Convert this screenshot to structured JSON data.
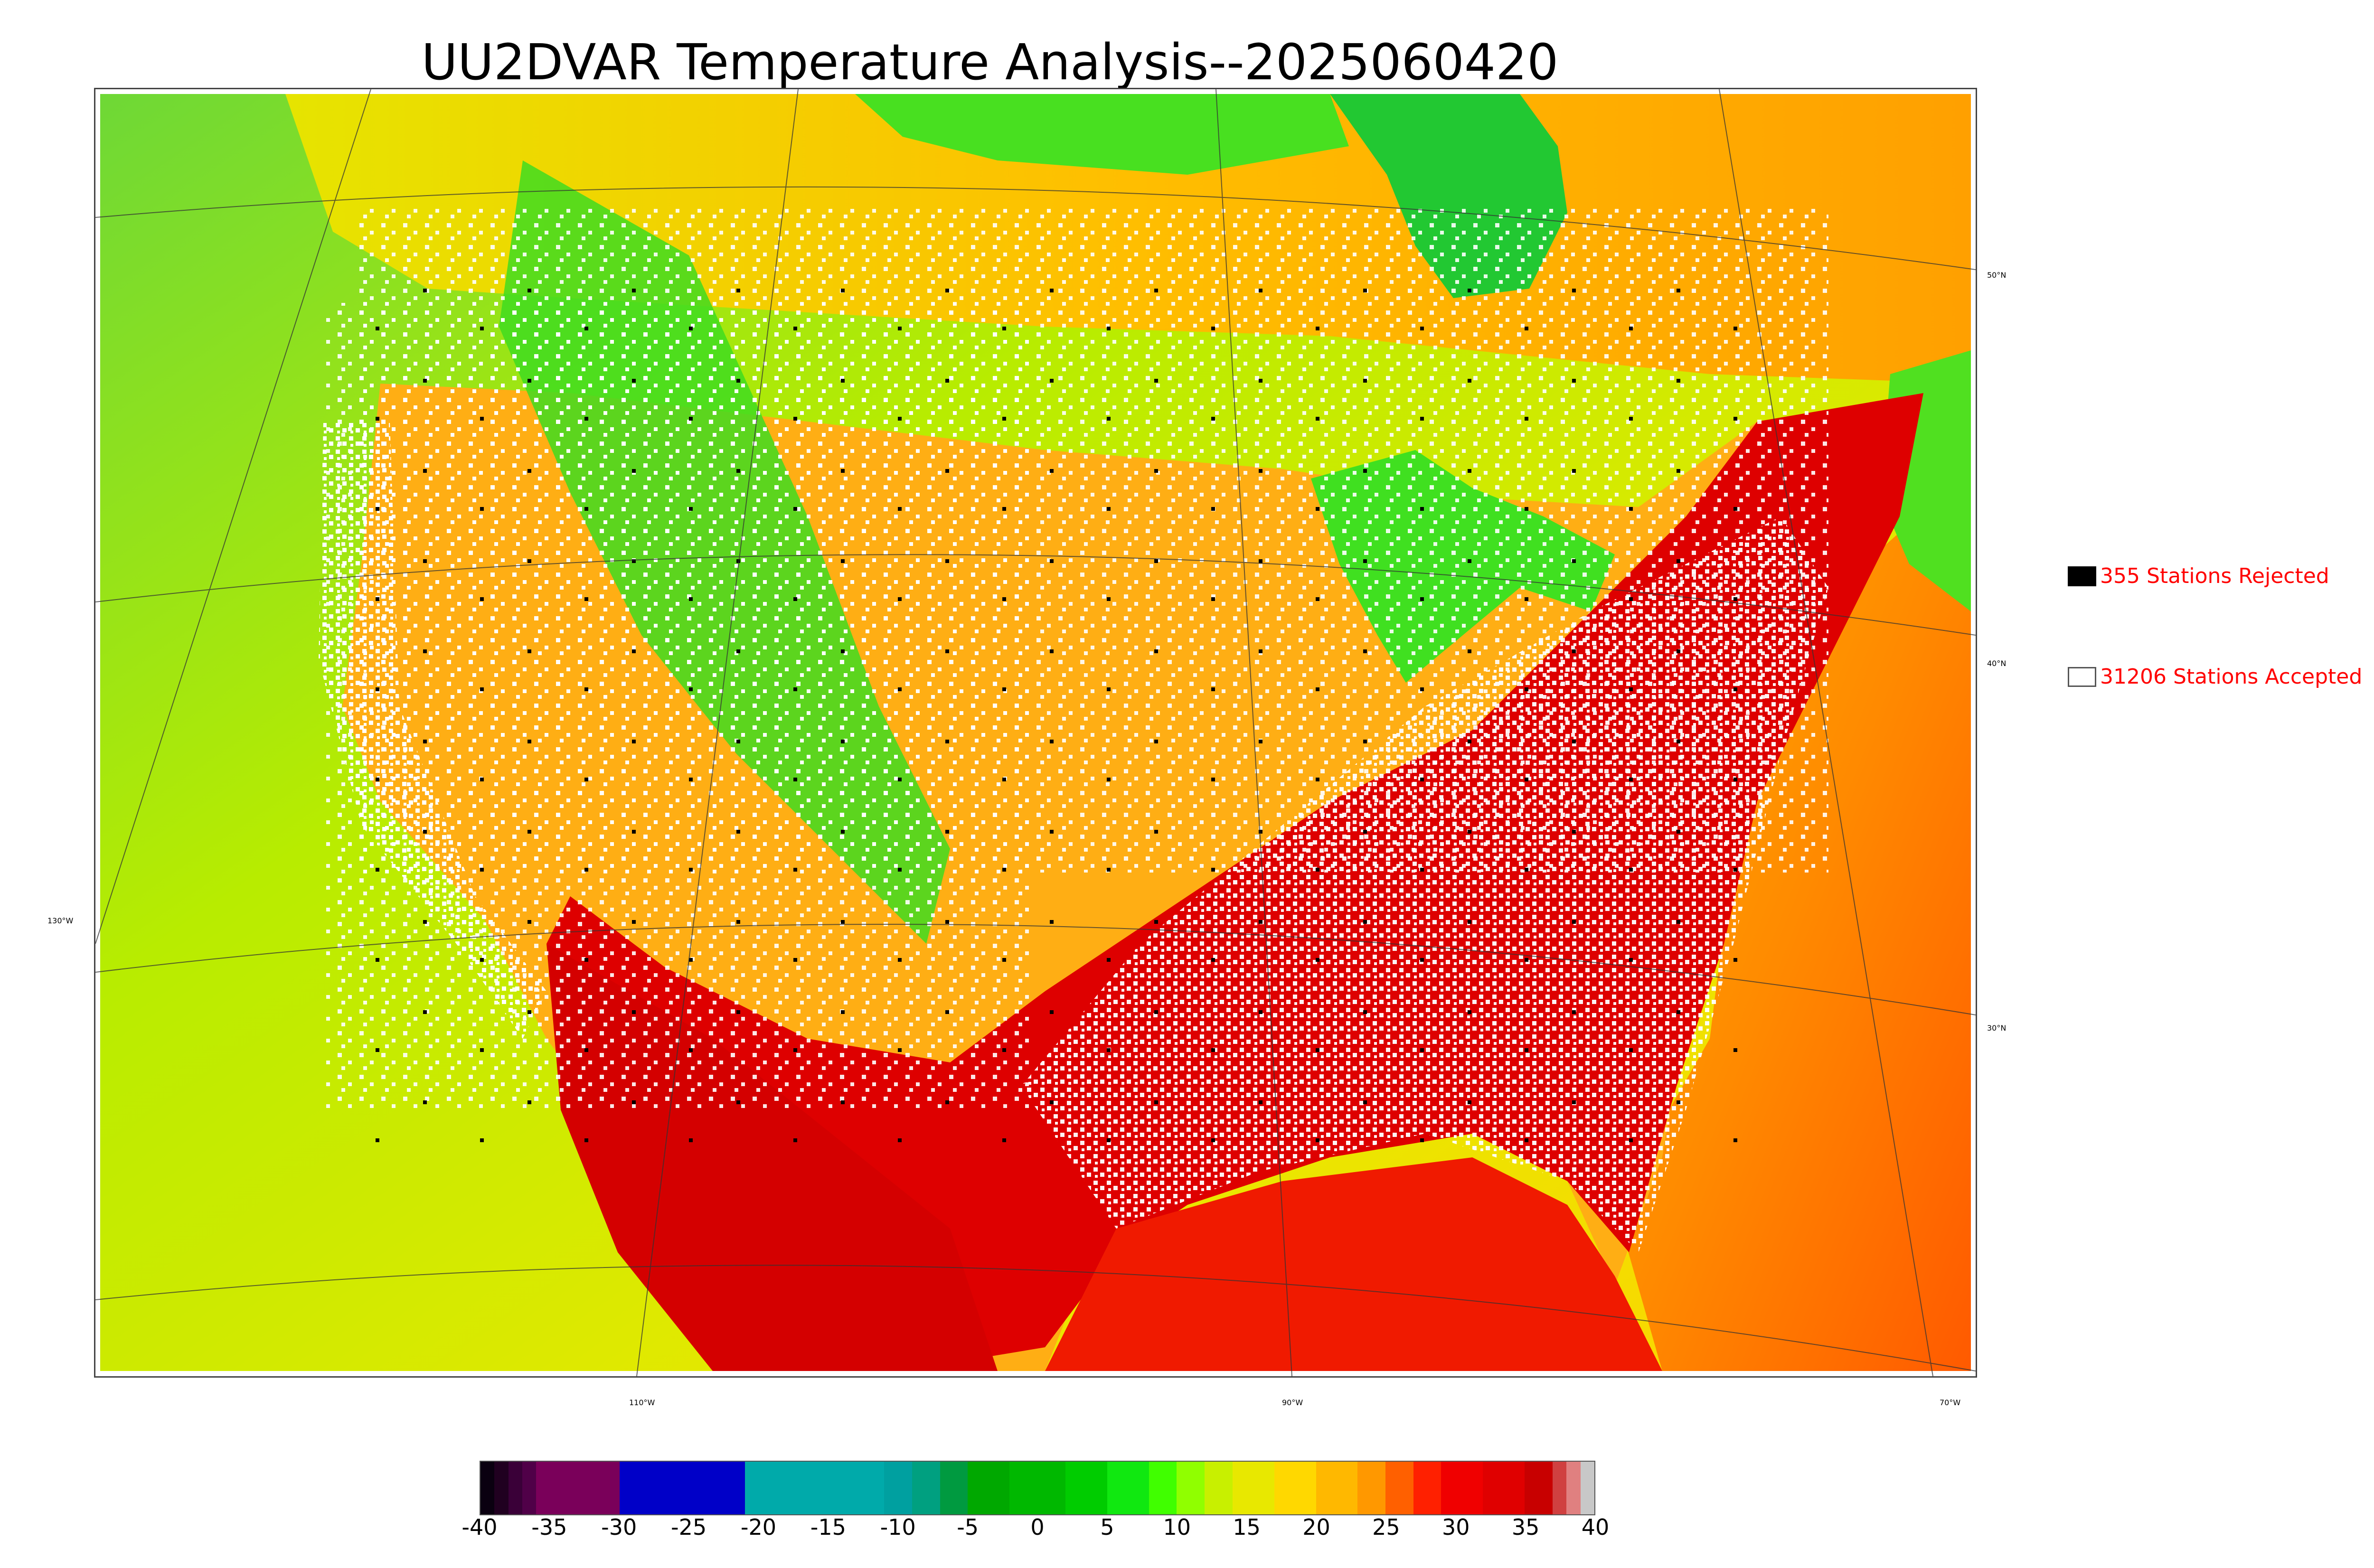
{
  "title": "UU2DVAR Temperature Analysis--2025060420",
  "map": {
    "lat_labels": [
      "50°N",
      "40°N",
      "30°N"
    ],
    "lon_labels_left": [
      "130°W"
    ],
    "lon_labels_bottom": [
      "110°W",
      "90°W",
      "70°W"
    ],
    "background_colors": {
      "ocean_pacific": "#c8ea00",
      "ocean_gulf": "#f01a00",
      "atlantic": "#ff8a00",
      "canada": "#ffb000",
      "hudson": "#22cc22",
      "plains": "#ffaa10",
      "rockies_green": "#40e020",
      "southeast_red": "#dd0000",
      "station_accepted": "#ffffff",
      "station_rejected": "#000000"
    }
  },
  "legend": {
    "rejected": {
      "count": 355,
      "label": "355 Stations Rejected",
      "swatch_color": "#000000"
    },
    "accepted": {
      "count": 31206,
      "label": "31206 Stations Accepted",
      "swatch_color": "#ffffff"
    }
  },
  "colorbar": {
    "ticks": [
      "-40",
      "-35",
      "-30",
      "-25",
      "-20",
      "-15",
      "-10",
      "-5",
      "0",
      "5",
      "10",
      "15",
      "20",
      "25",
      "30",
      "35",
      "40"
    ],
    "min": -40,
    "max": 40,
    "segments": [
      {
        "from": -40,
        "to": -39,
        "color": "#0a0010"
      },
      {
        "from": -39,
        "to": -38,
        "color": "#200020"
      },
      {
        "from": -38,
        "to": -37,
        "color": "#3a0038"
      },
      {
        "from": -37,
        "to": -36,
        "color": "#500048"
      },
      {
        "from": -36,
        "to": -30,
        "color": "#7a005a"
      },
      {
        "from": -30,
        "to": -21,
        "color": "#0000c8"
      },
      {
        "from": -21,
        "to": -11,
        "color": "#00aaaa"
      },
      {
        "from": -11,
        "to": -9,
        "color": "#00a0a0"
      },
      {
        "from": -9,
        "to": -7,
        "color": "#00a080"
      },
      {
        "from": -7,
        "to": -5,
        "color": "#009a40"
      },
      {
        "from": -5,
        "to": -2,
        "color": "#00a800"
      },
      {
        "from": -2,
        "to": 2,
        "color": "#00b800"
      },
      {
        "from": 2,
        "to": 5,
        "color": "#00cc00"
      },
      {
        "from": 5,
        "to": 8,
        "color": "#10e810"
      },
      {
        "from": 8,
        "to": 10,
        "color": "#40ff00"
      },
      {
        "from": 10,
        "to": 12,
        "color": "#90ff00"
      },
      {
        "from": 12,
        "to": 14,
        "color": "#c8f000"
      },
      {
        "from": 14,
        "to": 17,
        "color": "#e8e800"
      },
      {
        "from": 17,
        "to": 20,
        "color": "#ffd800"
      },
      {
        "from": 20,
        "to": 23,
        "color": "#ffb800"
      },
      {
        "from": 23,
        "to": 25,
        "color": "#ff9800"
      },
      {
        "from": 25,
        "to": 27,
        "color": "#ff6000"
      },
      {
        "from": 27,
        "to": 29,
        "color": "#ff2000"
      },
      {
        "from": 29,
        "to": 32,
        "color": "#f00000"
      },
      {
        "from": 32,
        "to": 35,
        "color": "#e00000"
      },
      {
        "from": 35,
        "to": 37,
        "color": "#c80000"
      },
      {
        "from": 37,
        "to": 38,
        "color": "#d04040"
      },
      {
        "from": 38,
        "to": 39,
        "color": "#e08080"
      },
      {
        "from": 39,
        "to": 40,
        "color": "#c8c8c8"
      }
    ]
  }
}
